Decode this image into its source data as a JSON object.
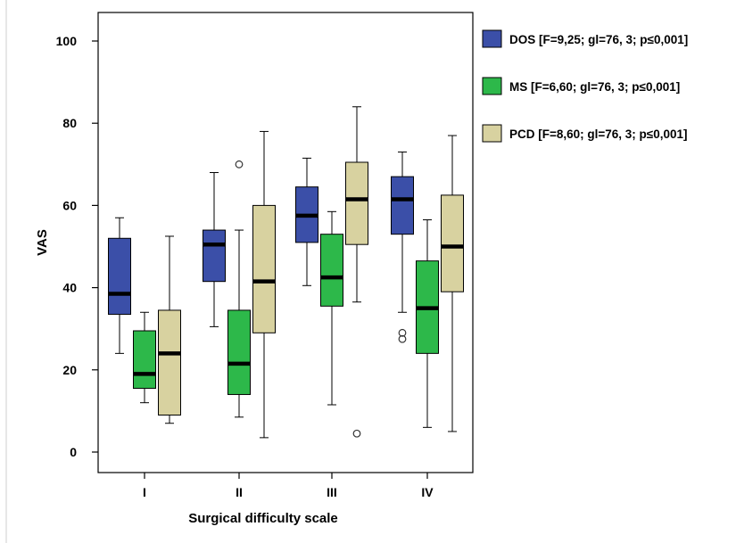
{
  "chart_data": {
    "type": "boxplot",
    "xlabel": "Surgical difficulty  scale",
    "ylabel": "VAS",
    "ylim": [
      0,
      100
    ],
    "yticks": [
      0,
      20,
      40,
      60,
      80,
      100
    ],
    "categories": [
      "I",
      "II",
      "III",
      "IV"
    ],
    "legend_position": "right",
    "grid": false,
    "series": [
      {
        "name": "DOS [F=9,25; gl=76, 3; p≤0,001]",
        "color": "#3b4fa8",
        "boxes": [
          {
            "min": 24,
            "q1": 33.5,
            "median": 38.5,
            "q3": 52,
            "max": 57,
            "outliers": []
          },
          {
            "min": 30.5,
            "q1": 41.5,
            "median": 50.5,
            "q3": 54,
            "max": 68,
            "outliers": []
          },
          {
            "min": 40.5,
            "q1": 51,
            "median": 57.5,
            "q3": 64.5,
            "max": 71.5,
            "outliers": []
          },
          {
            "min": 34,
            "q1": 53,
            "median": 61.5,
            "q3": 67,
            "max": 73,
            "outliers": [
              27.5,
              29
            ]
          }
        ]
      },
      {
        "name": "MS [F=6,60; gl=76, 3; p≤0,001]",
        "color": "#2db84a",
        "boxes": [
          {
            "min": 12,
            "q1": 15.5,
            "median": 19,
            "q3": 29.5,
            "max": 34,
            "outliers": []
          },
          {
            "min": 8.5,
            "q1": 14,
            "median": 21.5,
            "q3": 34.5,
            "max": 54,
            "outliers": [
              70
            ]
          },
          {
            "min": 11.5,
            "q1": 35.5,
            "median": 42.5,
            "q3": 53,
            "max": 58.5,
            "outliers": []
          },
          {
            "min": 6,
            "q1": 24,
            "median": 35,
            "q3": 46.5,
            "max": 56.5,
            "outliers": []
          }
        ]
      },
      {
        "name": "PCD [F=8,60; gl=76, 3; p≤0,001]",
        "color": "#d8d2a0",
        "boxes": [
          {
            "min": 7,
            "q1": 9,
            "median": 24,
            "q3": 34.5,
            "max": 52.5,
            "outliers": []
          },
          {
            "min": 3.5,
            "q1": 29,
            "median": 41.5,
            "q3": 60,
            "max": 78,
            "outliers": []
          },
          {
            "min": 36.5,
            "q1": 50.5,
            "median": 61.5,
            "q3": 70.5,
            "max": 84,
            "outliers": [
              4.5
            ]
          },
          {
            "min": 5,
            "q1": 39,
            "median": 50,
            "q3": 62.5,
            "max": 77,
            "outliers": []
          }
        ]
      }
    ]
  }
}
